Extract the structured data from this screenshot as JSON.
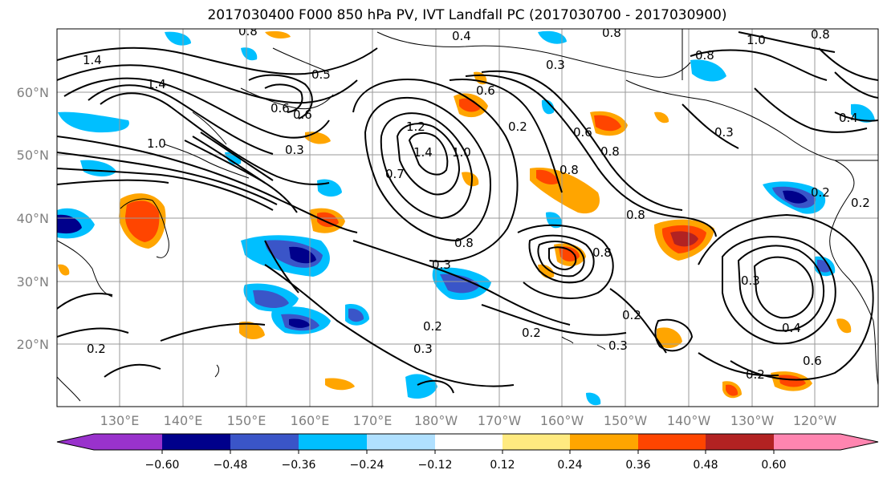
{
  "title": "2017030400 F000 850 hPa PV, IVT Landfall PC (2017030700 - 2017030900)",
  "lat_ticks": [
    "60°N",
    "50°N",
    "40°N",
    "30°N",
    "20°N"
  ],
  "lon_ticks": [
    "130°E",
    "140°E",
    "150°E",
    "160°E",
    "170°E",
    "180°W",
    "170°W",
    "160°W",
    "150°W",
    "140°W",
    "130°W",
    "120°W"
  ],
  "colorbar": {
    "tick_labels": [
      "−0.60",
      "−0.48",
      "−0.36",
      "−0.24",
      "−0.12",
      "0.12",
      "0.24",
      "0.36",
      "0.48",
      "0.60"
    ],
    "colors": [
      "#9932cc",
      "#00008b",
      "#3a55c8",
      "#00bfff",
      "#b0e0ff",
      "#ffffff",
      "#ffea80",
      "#ffa500",
      "#ff4500",
      "#b22222",
      "#ff85b0"
    ]
  },
  "contour_labels": [
    {
      "text": "1.4"
    },
    {
      "text": "1.4"
    },
    {
      "text": "1.0"
    },
    {
      "text": "0.6"
    },
    {
      "text": "0.8"
    },
    {
      "text": "0.5"
    },
    {
      "text": "0.6"
    },
    {
      "text": "0.3"
    },
    {
      "text": "0.4"
    },
    {
      "text": "0.8"
    },
    {
      "text": "1.2"
    },
    {
      "text": "1.4"
    },
    {
      "text": "1.0"
    },
    {
      "text": "0.7"
    },
    {
      "text": "0.8"
    },
    {
      "text": "0.6"
    },
    {
      "text": "0.2"
    },
    {
      "text": "0.3"
    },
    {
      "text": "0.8"
    },
    {
      "text": "0.6"
    },
    {
      "text": "0.8"
    },
    {
      "text": "0.8"
    },
    {
      "text": "0.8"
    },
    {
      "text": "1.0"
    },
    {
      "text": "0.8"
    },
    {
      "text": "0.4"
    },
    {
      "text": "0.3"
    },
    {
      "text": "0.2"
    },
    {
      "text": "0.2"
    },
    {
      "text": "0.8"
    },
    {
      "text": "0.3"
    },
    {
      "text": "0.2"
    },
    {
      "text": "0.3"
    },
    {
      "text": "0.2"
    },
    {
      "text": "0.2"
    },
    {
      "text": "0.3"
    },
    {
      "text": "0.3"
    },
    {
      "text": "0.4"
    },
    {
      "text": "0.6"
    },
    {
      "text": "0.2"
    },
    {
      "text": "0.2"
    }
  ]
}
